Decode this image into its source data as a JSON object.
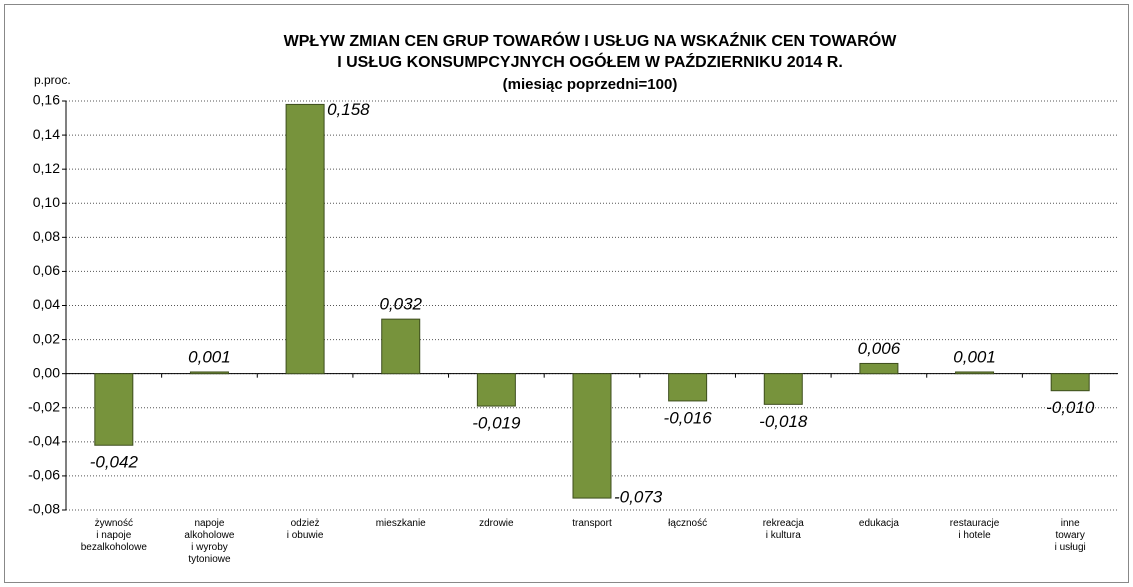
{
  "chart_data": {
    "type": "bar",
    "title": "WPŁYW ZMIAN  CEN  GRUP  TOWARÓW I USŁUG NA WSKAŹNIK  CEN  TOWARÓW",
    "title2": "I USŁUG KONSUMPCYJNYCH  OGÓŁEM W PAŹDZIERNIKU  2014 R.",
    "subtitle": "(miesiąc  poprzedni=100)",
    "y_label": "p.proc.",
    "categories": [
      "żywność\ni napoje\nbezalkoholowe",
      "napoje\nalkoholowe\ni wyroby\ntytoniowe",
      "odzież\ni obuwie",
      "mieszkanie",
      "zdrowie",
      "transport",
      "łączność",
      "rekreacja\ni kultura",
      "edukacja",
      "restauracje\ni hotele",
      "inne\ntowary\ni usługi"
    ],
    "values": [
      -0.042,
      0.001,
      0.158,
      0.032,
      -0.019,
      -0.073,
      -0.016,
      -0.018,
      0.006,
      0.001,
      -0.01
    ],
    "value_labels": [
      "-0,042",
      "0,001",
      "0,158",
      "0,032",
      "-0,019",
      "-0,073",
      "-0,016",
      "-0,018",
      "0,006",
      "0,001",
      "-0,010"
    ],
    "color": "#77933c",
    "ylim": [
      -0.08,
      0.16
    ],
    "yticks": [
      {
        "value": -0.08,
        "label": "-0,08"
      },
      {
        "value": -0.06,
        "label": "-0,06"
      },
      {
        "value": -0.04,
        "label": "-0,04"
      },
      {
        "value": -0.02,
        "label": "-0,02"
      },
      {
        "value": 0,
        "label": "0,00"
      },
      {
        "value": 0.02,
        "label": "0,02"
      },
      {
        "value": 0.04,
        "label": "0,04"
      },
      {
        "value": 0.06,
        "label": "0,06"
      },
      {
        "value": 0.08,
        "label": "0,08"
      },
      {
        "value": 0.1,
        "label": "0,10"
      },
      {
        "value": 0.12,
        "label": "0,12"
      },
      {
        "value": 0.14,
        "label": "0,14"
      },
      {
        "value": 0.16,
        "label": "0,16"
      }
    ],
    "grid": true
  }
}
